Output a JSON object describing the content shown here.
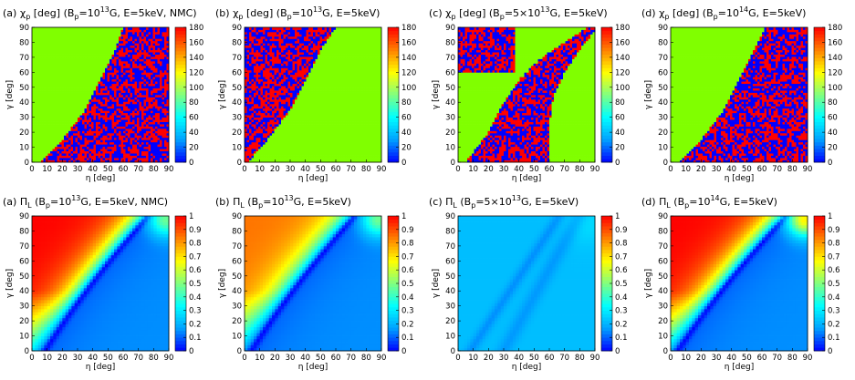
{
  "figure": {
    "heatmap_colors": [
      "#0000ff",
      "#00a0ff",
      "#00ffff",
      "#80ff80",
      "#ffff00",
      "#ff8000",
      "#ff0000"
    ],
    "chi_colors": {
      "zero": "#0000ff",
      "ninety": "#80ff00",
      "oneeighty": "#ff0000"
    }
  },
  "chart_data": [
    {
      "type": "heatmap",
      "panel": "a-top",
      "title_parts": [
        "(a) ",
        "χ",
        "p",
        " [deg] (B",
        "p",
        "=10",
        "13",
        "G, E=5keV, NMC)"
      ],
      "xlabel": "η [deg]",
      "ylabel": "γ [deg]",
      "xlim": [
        0,
        90
      ],
      "ylim": [
        0,
        90
      ],
      "x_ticks": [
        "0",
        "10",
        "20",
        "30",
        "40",
        "50",
        "60",
        "70",
        "80",
        "90"
      ],
      "y_ticks": [
        "0",
        "10",
        "20",
        "30",
        "40",
        "50",
        "60",
        "70",
        "80",
        "90"
      ],
      "colorbar_range": [
        0,
        180
      ],
      "colorbar_ticks": [
        "0",
        "20",
        "40",
        "60",
        "80",
        "100",
        "120",
        "140",
        "160",
        "180"
      ],
      "regions": "χp = 90 for γ above the boundary; χp randomly 0 or 180 below it",
      "boundary_eta_gamma": [
        [
          5,
          0
        ],
        [
          20,
          15
        ],
        [
          35,
          35
        ],
        [
          45,
          55
        ],
        [
          55,
          75
        ],
        [
          60,
          90
        ]
      ]
    },
    {
      "type": "heatmap",
      "panel": "b-top",
      "title_parts": [
        "(b) ",
        "χ",
        "p",
        " [deg] (B",
        "p",
        "=10",
        "13",
        "G, E=5keV)"
      ],
      "xlabel": "η [deg]",
      "ylabel": "γ [deg]",
      "xlim": [
        0,
        90
      ],
      "ylim": [
        0,
        90
      ],
      "x_ticks": [
        "0",
        "10",
        "20",
        "30",
        "40",
        "50",
        "60",
        "70",
        "80",
        "90"
      ],
      "y_ticks": [
        "0",
        "10",
        "20",
        "30",
        "40",
        "50",
        "60",
        "70",
        "80",
        "90"
      ],
      "colorbar_range": [
        0,
        180
      ],
      "colorbar_ticks": [
        "0",
        "20",
        "40",
        "60",
        "80",
        "100",
        "120",
        "140",
        "160",
        "180"
      ],
      "regions": "χp randomly 0 or 180 above the boundary; χp = 90 below it",
      "boundary_eta_gamma": [
        [
          2,
          0
        ],
        [
          15,
          15
        ],
        [
          30,
          35
        ],
        [
          40,
          55
        ],
        [
          50,
          75
        ],
        [
          60,
          90
        ]
      ]
    },
    {
      "type": "heatmap",
      "panel": "c-top",
      "title_parts": [
        "(c) ",
        "χ",
        "p",
        " [deg] (B",
        "p",
        "=5×10",
        "13",
        "G, E=5keV)"
      ],
      "xlabel": "η [deg]",
      "ylabel": "γ [deg]",
      "xlim": [
        0,
        90
      ],
      "ylim": [
        0,
        90
      ],
      "x_ticks": [
        "0",
        "10",
        "20",
        "30",
        "40",
        "50",
        "60",
        "70",
        "80",
        "90"
      ],
      "y_ticks": [
        "0",
        "10",
        "20",
        "30",
        "40",
        "50",
        "60",
        "70",
        "80",
        "90"
      ],
      "colorbar_range": [
        0,
        180
      ],
      "colorbar_ticks": [
        "0",
        "20",
        "40",
        "60",
        "80",
        "100",
        "120",
        "140",
        "160",
        "180"
      ],
      "regions": "random 0/180 band between two boundaries plus upper-left block; χp = 90 elsewhere"
    },
    {
      "type": "heatmap",
      "panel": "d-top",
      "title_parts": [
        "(d) ",
        "χ",
        "p",
        " [deg] (B",
        "p",
        "=10",
        "14",
        "G, E=5keV)"
      ],
      "xlabel": "η [deg]",
      "ylabel": "γ [deg]",
      "xlim": [
        0,
        90
      ],
      "ylim": [
        0,
        90
      ],
      "x_ticks": [
        "0",
        "10",
        "20",
        "30",
        "40",
        "50",
        "60",
        "70",
        "80",
        "90"
      ],
      "y_ticks": [
        "0",
        "10",
        "20",
        "30",
        "40",
        "50",
        "60",
        "70",
        "80",
        "90"
      ],
      "colorbar_range": [
        0,
        180
      ],
      "colorbar_ticks": [
        "0",
        "20",
        "40",
        "60",
        "80",
        "100",
        "120",
        "140",
        "160",
        "180"
      ],
      "regions": "χp = 90 for γ above the boundary; χp randomly 0 or 180 below it",
      "boundary_eta_gamma": [
        [
          5,
          0
        ],
        [
          20,
          15
        ],
        [
          35,
          35
        ],
        [
          45,
          55
        ],
        [
          55,
          75
        ],
        [
          62,
          90
        ]
      ]
    },
    {
      "type": "heatmap",
      "panel": "a-bottom",
      "title_parts": [
        "(a) ",
        "Π",
        "L",
        " (B",
        "p",
        "=10",
        "13",
        "G, E=5keV, NMC)"
      ],
      "xlabel": "η [deg]",
      "ylabel": "γ [deg]",
      "xlim": [
        0,
        90
      ],
      "ylim": [
        0,
        90
      ],
      "x_ticks": [
        "0",
        "10",
        "20",
        "30",
        "40",
        "50",
        "60",
        "70",
        "80",
        "90"
      ],
      "y_ticks": [
        "0",
        "10",
        "20",
        "30",
        "40",
        "50",
        "60",
        "70",
        "80",
        "90"
      ],
      "colorbar_range": [
        0,
        1
      ],
      "colorbar_ticks": [
        "0",
        "0.1",
        "0.2",
        "0.3",
        "0.4",
        "0.5",
        "0.6",
        "0.7",
        "0.8",
        "0.9",
        "1"
      ],
      "peak_value": 1.0,
      "dark_band": "curved minimum from (η≈10, γ≈0) to (η≈60, γ≈90)"
    },
    {
      "type": "heatmap",
      "panel": "b-bottom",
      "title_parts": [
        "(b) ",
        "Π",
        "L",
        " (B",
        "p",
        "=10",
        "13",
        "G, E=5keV)"
      ],
      "xlabel": "η [deg]",
      "ylabel": "γ [deg]",
      "xlim": [
        0,
        90
      ],
      "ylim": [
        0,
        90
      ],
      "x_ticks": [
        "0",
        "10",
        "20",
        "30",
        "40",
        "50",
        "60",
        "70",
        "80",
        "90"
      ],
      "y_ticks": [
        "0",
        "10",
        "20",
        "30",
        "40",
        "50",
        "60",
        "70",
        "80",
        "90"
      ],
      "colorbar_range": [
        0,
        1
      ],
      "colorbar_ticks": [
        "0",
        "0.1",
        "0.2",
        "0.3",
        "0.4",
        "0.5",
        "0.6",
        "0.7",
        "0.8",
        "0.9",
        "1"
      ],
      "peak_value": 0.85,
      "dark_band": "curved minimum from (η≈5, γ≈0) to (η≈60, γ≈90)"
    },
    {
      "type": "heatmap",
      "panel": "c-bottom",
      "title_parts": [
        "(c) ",
        "Π",
        "L",
        " (B",
        "p",
        "=5×10",
        "13",
        "G, E=5keV)"
      ],
      "xlabel": "η [deg]",
      "ylabel": "γ [deg]",
      "xlim": [
        0,
        90
      ],
      "ylim": [
        0,
        90
      ],
      "x_ticks": [
        "0",
        "10",
        "20",
        "30",
        "40",
        "50",
        "60",
        "70",
        "80",
        "90"
      ],
      "y_ticks": [
        "0",
        "10",
        "20",
        "30",
        "40",
        "50",
        "60",
        "70",
        "80",
        "90"
      ],
      "colorbar_range": [
        0,
        1
      ],
      "colorbar_ticks": [
        "0",
        "0.1",
        "0.2",
        "0.3",
        "0.4",
        "0.5",
        "0.6",
        "0.7",
        "0.8",
        "0.9",
        "1"
      ],
      "peak_value": 0.25,
      "dark_band": "two faint minima curves"
    },
    {
      "type": "heatmap",
      "panel": "d-bottom",
      "title_parts": [
        "(d) ",
        "Π",
        "L",
        " (B",
        "p",
        "=10",
        "14",
        "G, E=5keV)"
      ],
      "xlabel": "η [deg]",
      "ylabel": "γ [deg]",
      "xlim": [
        0,
        90
      ],
      "ylim": [
        0,
        90
      ],
      "x_ticks": [
        "0",
        "10",
        "20",
        "30",
        "40",
        "50",
        "60",
        "70",
        "80",
        "90"
      ],
      "y_ticks": [
        "0",
        "10",
        "20",
        "30",
        "40",
        "50",
        "60",
        "70",
        "80",
        "90"
      ],
      "colorbar_range": [
        0,
        1
      ],
      "colorbar_ticks": [
        "0",
        "0.1",
        "0.2",
        "0.3",
        "0.4",
        "0.5",
        "0.6",
        "0.7",
        "0.8",
        "0.9",
        "1"
      ],
      "peak_value": 1.0,
      "dark_band": "curved minimum from (η≈5, γ≈0) to (η≈65, γ≈90)"
    }
  ]
}
